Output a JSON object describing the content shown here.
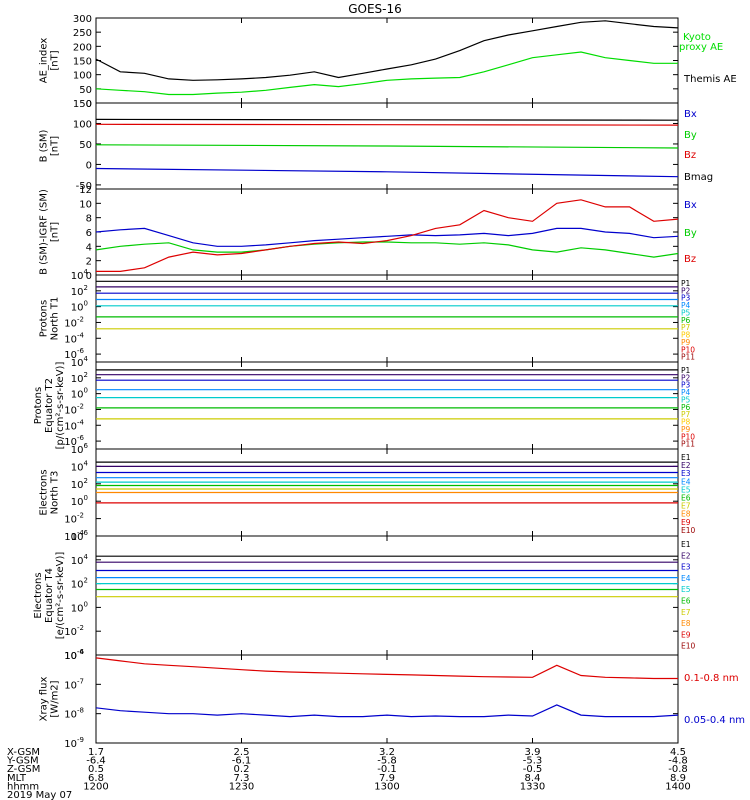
{
  "title": "GOES-16",
  "chart_data": [
    {
      "type": "line",
      "ylabel": [
        "AE_index",
        "[nT]"
      ],
      "ylim": [
        0,
        300
      ],
      "yticks": [
        0,
        50,
        100,
        150,
        200,
        250,
        300
      ],
      "x": [
        1200,
        1205,
        1210,
        1215,
        1220,
        1225,
        1230,
        1235,
        1240,
        1245,
        1250,
        1255,
        1300,
        1305,
        1310,
        1315,
        1320,
        1325,
        1330,
        1335,
        1340,
        1345,
        1350,
        1355,
        1400
      ],
      "series": [
        {
          "name": "Themis AE",
          "color": "#000000",
          "values": [
            155,
            110,
            105,
            85,
            80,
            82,
            85,
            90,
            98,
            110,
            90,
            105,
            120,
            135,
            155,
            185,
            220,
            240,
            255,
            270,
            285,
            290,
            280,
            270,
            265
          ]
        },
        {
          "name": "Kyoto proxy AE",
          "color": "#00dd00",
          "values": [
            50,
            45,
            40,
            30,
            30,
            35,
            38,
            45,
            55,
            65,
            58,
            68,
            80,
            85,
            88,
            90,
            110,
            135,
            160,
            170,
            180,
            160,
            150,
            140,
            140
          ]
        }
      ],
      "legend": [
        {
          "text": "Kyoto proxy AE",
          "color": "#00dd00"
        },
        {
          "text": "Themis AE",
          "color": "#000000"
        }
      ]
    },
    {
      "type": "line",
      "ylabel": [
        "B (SM)",
        "[nT]"
      ],
      "ylim": [
        -60,
        150
      ],
      "yticks": [
        -50,
        0,
        50,
        100,
        150
      ],
      "x": [
        1200,
        1300,
        1400
      ],
      "series": [
        {
          "name": "Bx",
          "color": "#0000cc",
          "values": [
            -10,
            -18,
            -30
          ]
        },
        {
          "name": "By",
          "color": "#00cc00",
          "values": [
            48,
            45,
            40
          ]
        },
        {
          "name": "Bz",
          "color": "#dd0000",
          "values": [
            98,
            97,
            96
          ]
        },
        {
          "name": "Bmag",
          "color": "#000000",
          "values": [
            110,
            109,
            108
          ]
        }
      ],
      "legend": [
        {
          "text": "Bx",
          "color": "#0000cc"
        },
        {
          "text": "By",
          "color": "#00cc00"
        },
        {
          "text": "Bz",
          "color": "#dd0000"
        },
        {
          "text": "Bmag",
          "color": "#000000"
        }
      ]
    },
    {
      "type": "line",
      "ylabel": [
        "B (SM)-IGRF (SM)",
        "[nT]"
      ],
      "ylim": [
        0,
        12
      ],
      "yticks": [
        0,
        2,
        4,
        6,
        8,
        10,
        12
      ],
      "x": [
        1200,
        1205,
        1210,
        1215,
        1220,
        1225,
        1230,
        1235,
        1240,
        1245,
        1250,
        1255,
        1300,
        1305,
        1310,
        1315,
        1320,
        1325,
        1330,
        1335,
        1340,
        1345,
        1350,
        1355,
        1400
      ],
      "series": [
        {
          "name": "Bx",
          "color": "#0000cc",
          "values": [
            6,
            6.3,
            6.5,
            5.5,
            4.5,
            4,
            4,
            4.2,
            4.5,
            4.8,
            5,
            5.2,
            5.4,
            5.6,
            5.5,
            5.6,
            5.8,
            5.5,
            5.8,
            6.5,
            6.5,
            6,
            5.8,
            5.2,
            5.4
          ]
        },
        {
          "name": "By",
          "color": "#00cc00",
          "values": [
            3.5,
            4,
            4.3,
            4.5,
            3.5,
            3.2,
            3.2,
            3.5,
            4,
            4.3,
            4.5,
            4.6,
            4.6,
            4.5,
            4.5,
            4.3,
            4.5,
            4.2,
            3.5,
            3.2,
            3.8,
            3.5,
            3,
            2.5,
            3
          ]
        },
        {
          "name": "Bz",
          "color": "#dd0000",
          "values": [
            0.5,
            0.5,
            1,
            2.5,
            3.2,
            2.8,
            3,
            3.5,
            4,
            4.4,
            4.6,
            4.4,
            4.8,
            5.5,
            6.5,
            7,
            9,
            8,
            7.5,
            10,
            10.5,
            9.5,
            9.5,
            7.5,
            7.8
          ]
        }
      ],
      "legend": [
        {
          "text": "Bx",
          "color": "#0000cc"
        },
        {
          "text": "By",
          "color": "#00cc00"
        },
        {
          "text": "Bz",
          "color": "#dd0000"
        }
      ]
    },
    {
      "type": "line",
      "scale": "log",
      "ylabel": [
        "Protons",
        "North T1"
      ],
      "ylim_exp": [
        -7,
        4
      ],
      "yticks_exp": [
        -6,
        -4,
        -2,
        0,
        2,
        4
      ],
      "x": [
        1200,
        1300,
        1400
      ],
      "series": [
        {
          "name": "P1",
          "color": "#000000",
          "values_exp": [
            3.2,
            3.2,
            3.2
          ]
        },
        {
          "name": "P2",
          "color": "#330066",
          "values_exp": [
            2.5,
            2.5,
            2.5
          ]
        },
        {
          "name": "P3",
          "color": "#0000cc",
          "values_exp": [
            1.7,
            1.7,
            1.7
          ]
        },
        {
          "name": "P4",
          "color": "#0088ff",
          "values_exp": [
            0.9,
            0.9,
            0.9
          ]
        },
        {
          "name": "P5",
          "color": "#00cccc",
          "values_exp": [
            0.1,
            0.1,
            0.1
          ]
        },
        {
          "name": "P6",
          "color": "#00bb00",
          "values_exp": [
            -1.3,
            -1.3,
            -1.3
          ]
        },
        {
          "name": "P7",
          "color": "#cccc00",
          "values_exp": [
            -2.8,
            -2.8,
            -2.8
          ]
        }
      ],
      "legend": [
        {
          "text": "P1",
          "color": "#000000"
        },
        {
          "text": "P2",
          "color": "#330066"
        },
        {
          "text": "P3",
          "color": "#0000cc"
        },
        {
          "text": "P4",
          "color": "#0088ff"
        },
        {
          "text": "P5",
          "color": "#00cccc"
        },
        {
          "text": "P6",
          "color": "#00bb00"
        },
        {
          "text": "P7",
          "color": "#cccc00"
        },
        {
          "text": "P8",
          "color": "#ffcc00"
        },
        {
          "text": "P9",
          "color": "#ff8800"
        },
        {
          "text": "P10",
          "color": "#dd0000"
        },
        {
          "text": "P11",
          "color": "#990000"
        }
      ]
    },
    {
      "type": "line",
      "scale": "log",
      "ylabel": [
        "Protons",
        "Equator T2",
        "[p/(cm²-s-sr-keV)]"
      ],
      "ylim_exp": [
        -7,
        4
      ],
      "yticks_exp": [
        -6,
        -4,
        -2,
        0,
        2,
        4
      ],
      "x": [
        1200,
        1300,
        1400
      ],
      "series": [
        {
          "name": "P1",
          "color": "#000000",
          "values_exp": [
            3.0,
            3.0,
            3.0
          ]
        },
        {
          "name": "P2",
          "color": "#330066",
          "values_exp": [
            2.4,
            2.4,
            2.4
          ]
        },
        {
          "name": "P3",
          "color": "#0000cc",
          "values_exp": [
            1.7,
            1.7,
            1.7
          ]
        },
        {
          "name": "P4",
          "color": "#0088ff",
          "values_exp": [
            0.5,
            0.5,
            0.5
          ]
        },
        {
          "name": "P5",
          "color": "#00cccc",
          "values_exp": [
            -0.5,
            -0.5,
            -0.5
          ]
        },
        {
          "name": "P6",
          "color": "#00bb00",
          "values_exp": [
            -1.8,
            -1.8,
            -1.8
          ]
        },
        {
          "name": "P7",
          "color": "#cccc00",
          "values_exp": [
            -3.2,
            -3.2,
            -3.2
          ]
        }
      ],
      "legend": [
        {
          "text": "P1",
          "color": "#000000"
        },
        {
          "text": "P2",
          "color": "#330066"
        },
        {
          "text": "P3",
          "color": "#0000cc"
        },
        {
          "text": "P4",
          "color": "#0088ff"
        },
        {
          "text": "P5",
          "color": "#00cccc"
        },
        {
          "text": "P6",
          "color": "#00bb00"
        },
        {
          "text": "P7",
          "color": "#cccc00"
        },
        {
          "text": "P8",
          "color": "#ffcc00"
        },
        {
          "text": "P9",
          "color": "#ff8800"
        },
        {
          "text": "P10",
          "color": "#dd0000"
        },
        {
          "text": "P11",
          "color": "#990000"
        }
      ]
    },
    {
      "type": "line",
      "scale": "log",
      "ylabel": [
        "Electrons",
        "North T3"
      ],
      "ylim_exp": [
        -4,
        6
      ],
      "yticks_exp": [
        -4,
        -2,
        0,
        2,
        4,
        6
      ],
      "x": [
        1200,
        1300,
        1400
      ],
      "series": [
        {
          "name": "E1",
          "color": "#000000",
          "values_exp": [
            4.5,
            4.5,
            4.5
          ]
        },
        {
          "name": "E2",
          "color": "#330066",
          "values_exp": [
            4.0,
            4.0,
            4.0
          ]
        },
        {
          "name": "E3",
          "color": "#0000cc",
          "values_exp": [
            3.3,
            3.3,
            3.3
          ]
        },
        {
          "name": "E4",
          "color": "#0088ff",
          "values_exp": [
            2.7,
            2.7,
            2.7
          ]
        },
        {
          "name": "E5",
          "color": "#00cccc",
          "values_exp": [
            2.2,
            2.2,
            2.2
          ]
        },
        {
          "name": "E6",
          "color": "#00bb00",
          "values_exp": [
            1.8,
            1.8,
            1.8
          ]
        },
        {
          "name": "E7",
          "color": "#cccc00",
          "values_exp": [
            1.4,
            1.4,
            1.4
          ]
        },
        {
          "name": "E8",
          "color": "#ff8800",
          "values_exp": [
            1.0,
            1.0,
            1.0
          ]
        },
        {
          "name": "E9",
          "color": "#dd0000",
          "values_exp": [
            -0.2,
            -0.2,
            -0.2
          ]
        }
      ],
      "legend": [
        {
          "text": "E1",
          "color": "#000000"
        },
        {
          "text": "E2",
          "color": "#330066"
        },
        {
          "text": "E3",
          "color": "#0000cc"
        },
        {
          "text": "E4",
          "color": "#0088ff"
        },
        {
          "text": "E5",
          "color": "#00cccc"
        },
        {
          "text": "E6",
          "color": "#00bb00"
        },
        {
          "text": "E7",
          "color": "#cccc00"
        },
        {
          "text": "E8",
          "color": "#ff8800"
        },
        {
          "text": "E9",
          "color": "#dd0000"
        },
        {
          "text": "E10",
          "color": "#990000"
        }
      ]
    },
    {
      "type": "line",
      "scale": "log",
      "ylabel": [
        "Electrons",
        "Equator T4",
        "[e/(cm²-s-sr-keV)]"
      ],
      "ylim_exp": [
        -4,
        6
      ],
      "yticks_exp": [
        -4,
        -2,
        0,
        2,
        4,
        6
      ],
      "x": [
        1200,
        1300,
        1400
      ],
      "series": [
        {
          "name": "E1",
          "color": "#000000",
          "values_exp": [
            4.3,
            4.3,
            4.3
          ]
        },
        {
          "name": "E2",
          "color": "#330066",
          "values_exp": [
            3.8,
            3.8,
            3.8
          ]
        },
        {
          "name": "E3",
          "color": "#0000cc",
          "values_exp": [
            3.1,
            3.1,
            3.1
          ]
        },
        {
          "name": "E4",
          "color": "#0088ff",
          "values_exp": [
            2.5,
            2.5,
            2.5
          ]
        },
        {
          "name": "E5",
          "color": "#00cccc",
          "values_exp": [
            2.0,
            2.0,
            2.0
          ]
        },
        {
          "name": "E6",
          "color": "#00bb00",
          "values_exp": [
            1.5,
            1.5,
            1.5
          ]
        },
        {
          "name": "E7",
          "color": "#cccc00",
          "values_exp": [
            0.9,
            0.9,
            0.9
          ]
        }
      ],
      "legend": [
        {
          "text": "E1",
          "color": "#000000"
        },
        {
          "text": "E2",
          "color": "#330066"
        },
        {
          "text": "E3",
          "color": "#0000cc"
        },
        {
          "text": "E4",
          "color": "#0088ff"
        },
        {
          "text": "E5",
          "color": "#00cccc"
        },
        {
          "text": "E6",
          "color": "#00bb00"
        },
        {
          "text": "E7",
          "color": "#cccc00"
        },
        {
          "text": "E8",
          "color": "#ff8800"
        },
        {
          "text": "E9",
          "color": "#dd0000"
        },
        {
          "text": "E10",
          "color": "#990000"
        }
      ]
    },
    {
      "type": "line",
      "scale": "log",
      "ylabel": [
        "Xray flux",
        "[W/m2]"
      ],
      "ylim_exp": [
        -9,
        -6
      ],
      "yticks_exp": [
        -9,
        -8,
        -7,
        -6
      ],
      "x": [
        1200,
        1205,
        1210,
        1215,
        1220,
        1225,
        1230,
        1235,
        1240,
        1245,
        1250,
        1255,
        1300,
        1305,
        1310,
        1315,
        1320,
        1325,
        1330,
        1335,
        1340,
        1345,
        1350,
        1355,
        1400
      ],
      "series": [
        {
          "name": "0.1-0.8 nm",
          "color": "#dd0000",
          "values_exp": [
            -6.1,
            -6.2,
            -6.3,
            -6.35,
            -6.4,
            -6.45,
            -6.5,
            -6.55,
            -6.58,
            -6.6,
            -6.62,
            -6.64,
            -6.66,
            -6.68,
            -6.7,
            -6.72,
            -6.74,
            -6.75,
            -6.76,
            -6.35,
            -6.7,
            -6.76,
            -6.78,
            -6.8,
            -6.8
          ]
        },
        {
          "name": "0.05-0.4 nm",
          "color": "#0000cc",
          "values_exp": [
            -7.8,
            -7.9,
            -7.95,
            -8.0,
            -8.0,
            -8.05,
            -8.0,
            -8.05,
            -8.1,
            -8.05,
            -8.1,
            -8.1,
            -8.05,
            -8.1,
            -8.08,
            -8.1,
            -8.1,
            -8.05,
            -8.08,
            -7.7,
            -8.05,
            -8.1,
            -8.1,
            -8.1,
            -8.05
          ]
        }
      ],
      "legend": [
        {
          "text": "0.1-0.8 nm",
          "color": "#dd0000"
        },
        {
          "text": "0.05-0.4 nm",
          "color": "#0000cc"
        }
      ]
    }
  ],
  "xaxis": {
    "ticks": [
      1200,
      1230,
      1300,
      1330,
      1400
    ],
    "rows": [
      {
        "label": "X-GSM",
        "values": [
          "1.7",
          "2.5",
          "3.2",
          "3.9",
          "4.5"
        ]
      },
      {
        "label": "Y-GSM",
        "values": [
          "-6.4",
          "-6.1",
          "-5.8",
          "-5.3",
          "-4.8"
        ]
      },
      {
        "label": "Z-GSM",
        "values": [
          "0.5",
          "0.2",
          "-0.1",
          "-0.5",
          "-0.8"
        ]
      },
      {
        "label": "MLT",
        "values": [
          "6.8",
          "7.3",
          "7.9",
          "8.4",
          "8.9"
        ]
      },
      {
        "label": "hhmm",
        "values": [
          "1200",
          "1230",
          "1300",
          "1330",
          "1400"
        ]
      }
    ],
    "date": "2019 May 07"
  }
}
